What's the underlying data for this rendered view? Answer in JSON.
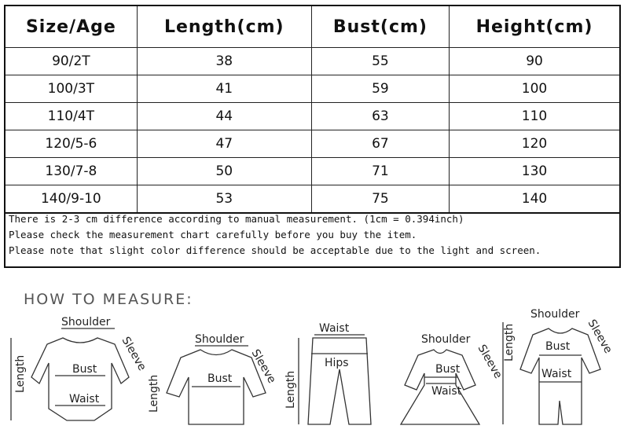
{
  "table": {
    "headers": [
      "Size/Age",
      "Length(cm)",
      "Bust(cm)",
      "Height(cm)"
    ],
    "rows": [
      [
        "90/2T",
        "38",
        "55",
        "90"
      ],
      [
        "100/3T",
        "41",
        "59",
        "100"
      ],
      [
        "110/4T",
        "44",
        "63",
        "110"
      ],
      [
        "120/5-6",
        "47",
        "67",
        "120"
      ],
      [
        "130/7-8",
        "50",
        "71",
        "130"
      ],
      [
        "140/9-10",
        "53",
        "75",
        "140"
      ]
    ]
  },
  "notes": [
    "There is 2-3 cm difference according to manual measurement. (1cm = 0.394inch)",
    "Please check the measurement chart carefully before you buy the item.",
    "Please note that slight color difference should be acceptable due to the light and screen."
  ],
  "how_to": {
    "title": "HOW TO MEASURE:",
    "labels": {
      "shoulder": "Shoulder",
      "sleeve": "Sleeve",
      "length": "Length",
      "bust": "Bust",
      "waist": "Waist",
      "hips": "Hips"
    }
  }
}
